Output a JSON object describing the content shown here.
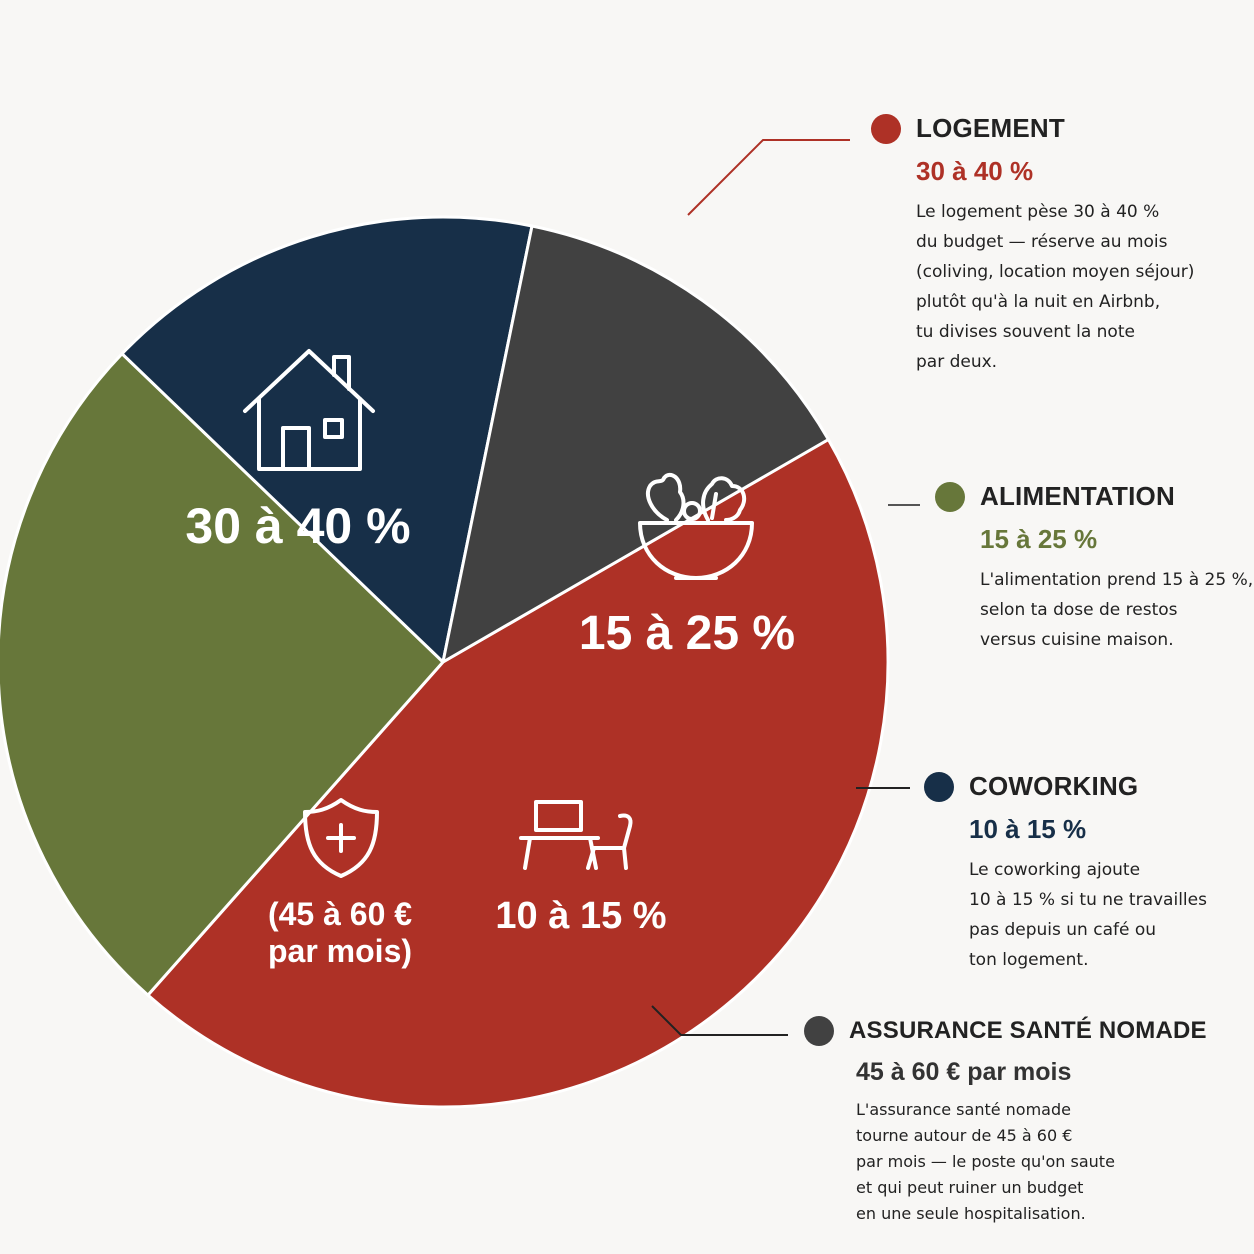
{
  "colors": {
    "logement": "#ae3126",
    "alimentation": "#67773a",
    "coworking": "#172f48",
    "assurance": "#414141",
    "text_dark": "#222222"
  },
  "chart_data": {
    "type": "pie",
    "slices": [
      {
        "key": "logement",
        "name": "LOGEMENT",
        "value": 35,
        "label": "30 à 40 %",
        "icon": "house-icon",
        "color": "#ae3126"
      },
      {
        "key": "alimentation",
        "name": "ALIMENTATION",
        "value": 20,
        "label": "15 à 25 %",
        "icon": "salad-bowl-icon",
        "color": "#67773a"
      },
      {
        "key": "coworking",
        "name": "COWORKING",
        "value": 12.5,
        "label": "10 à 15 %",
        "icon": "desk-chair-icon",
        "color": "#172f48"
      },
      {
        "key": "assurance",
        "name": "ASSURANCE SANTÉ NOMADE",
        "value": 10.5,
        "label_lines": [
          "(45 à 60 €",
          "par mois)"
        ],
        "icon": "health-shield-icon",
        "color": "#414141"
      }
    ]
  },
  "legend": {
    "logement": {
      "title": "LOGEMENT",
      "range": "30 à 40 %",
      "desc": [
        "Le logement pèse 30 à 40 %",
        "du budget — réserve au mois",
        "(coliving, location moyen séjour)",
        "plutôt qu'à la nuit en Airbnb,",
        "tu divises souvent la note",
        "par deux."
      ]
    },
    "alimentation": {
      "title": "ALIMENTATION",
      "range": "15 à 25 %",
      "desc": [
        "L'alimentation prend 15 à 25 %,",
        "selon ta dose de restos",
        "versus cuisine maison."
      ]
    },
    "coworking": {
      "title": "COWORKING",
      "range": "10 à 15 %",
      "desc": [
        "Le coworking ajoute",
        "10 à 15 % si tu ne travailles",
        "pas depuis un café ou",
        "ton logement."
      ]
    },
    "assurance": {
      "title": "ASSURANCE SANTÉ NOMADE",
      "range": "45 à 60 € par mois",
      "desc": [
        "L'assurance santé nomade",
        "tourne autour de 45 à 60 €",
        "par mois — le poste qu'on saute",
        "et qui peut ruiner un budget",
        "en une seule hospitalisation."
      ]
    }
  }
}
